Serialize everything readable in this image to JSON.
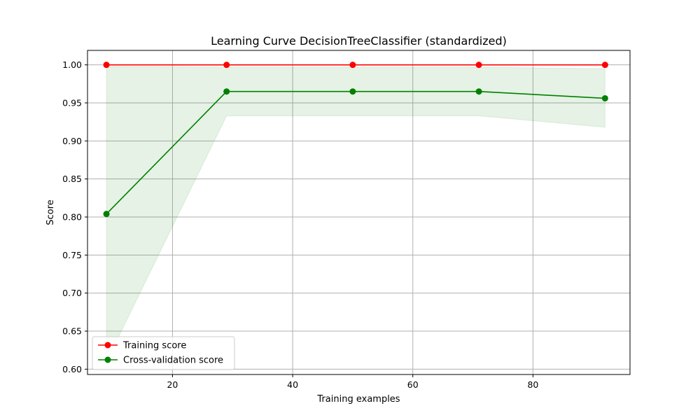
{
  "chart_data": {
    "type": "line",
    "title": "Learning Curve DecisionTreeClassifier (standardized)",
    "xlabel": "Training examples",
    "ylabel": "Score",
    "xlim": [
      5.85,
      96.15
    ],
    "ylim": [
      0.593,
      1.019
    ],
    "xticks": [
      20,
      40,
      60,
      80
    ],
    "yticks": [
      0.6,
      0.65,
      0.7,
      0.75,
      0.8,
      0.85,
      0.9,
      0.95,
      1.0
    ],
    "grid": true,
    "legend_position": "lower-left",
    "x": [
      9,
      29,
      50,
      71,
      92
    ],
    "series": [
      {
        "name": "Training score",
        "color": "#ff0000",
        "values": [
          1.0,
          1.0,
          1.0,
          1.0,
          1.0
        ],
        "band_low": [
          1.0,
          1.0,
          1.0,
          1.0,
          1.0
        ],
        "band_high": [
          1.0,
          1.0,
          1.0,
          1.0,
          1.0
        ]
      },
      {
        "name": "Cross-validation score",
        "color": "#008000",
        "values": [
          0.804,
          0.965,
          0.965,
          0.965,
          0.956
        ],
        "band_low": [
          0.61,
          0.933,
          0.933,
          0.933,
          0.918
        ],
        "band_high": [
          0.998,
          0.997,
          0.997,
          0.997,
          0.995
        ]
      }
    ]
  }
}
